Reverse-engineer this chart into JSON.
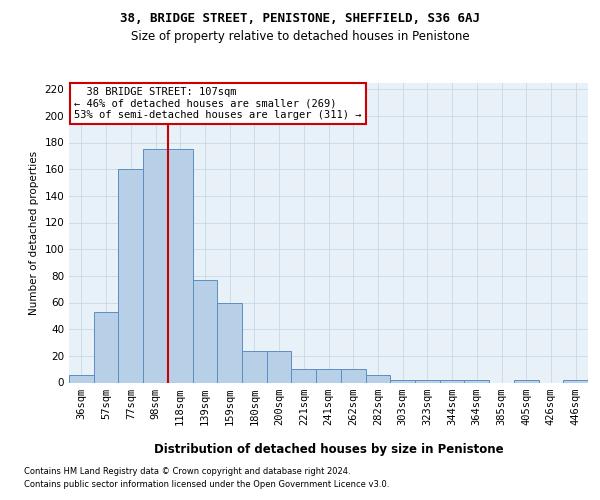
{
  "title": "38, BRIDGE STREET, PENISTONE, SHEFFIELD, S36 6AJ",
  "subtitle": "Size of property relative to detached houses in Penistone",
  "xlabel": "Distribution of detached houses by size in Penistone",
  "ylabel": "Number of detached properties",
  "footnote1": "Contains HM Land Registry data © Crown copyright and database right 2024.",
  "footnote2": "Contains public sector information licensed under the Open Government Licence v3.0.",
  "bar_labels": [
    "36sqm",
    "57sqm",
    "77sqm",
    "98sqm",
    "118sqm",
    "139sqm",
    "159sqm",
    "180sqm",
    "200sqm",
    "221sqm",
    "241sqm",
    "262sqm",
    "282sqm",
    "303sqm",
    "323sqm",
    "344sqm",
    "364sqm",
    "385sqm",
    "405sqm",
    "426sqm",
    "446sqm"
  ],
  "bar_values": [
    6,
    53,
    160,
    175,
    175,
    77,
    60,
    24,
    24,
    10,
    10,
    10,
    6,
    2,
    2,
    2,
    2,
    0,
    2,
    0,
    2
  ],
  "bar_color": "#b8cfe8",
  "bar_edge_color": "#5b8ec4",
  "bar_edge_width": 0.7,
  "grid_color": "#c8d8e8",
  "background_color": "#e8f0f8",
  "vline_color": "#cc0000",
  "vline_pos": 3.5,
  "annotation_line1": "  38 BRIDGE STREET: 107sqm",
  "annotation_line2": "← 46% of detached houses are smaller (269)",
  "annotation_line3": "53% of semi-detached houses are larger (311) →",
  "annotation_box_facecolor": "#ffffff",
  "annotation_box_edgecolor": "#cc0000",
  "ylim": [
    0,
    225
  ],
  "yticks": [
    0,
    20,
    40,
    60,
    80,
    100,
    120,
    140,
    160,
    180,
    200,
    220
  ]
}
